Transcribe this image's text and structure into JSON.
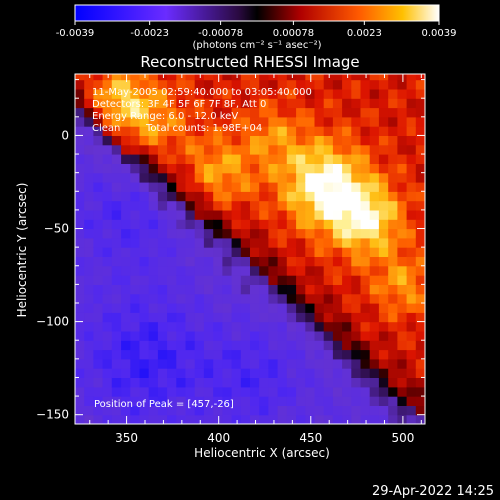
{
  "colorbar": {
    "tick_labels": [
      "-0.0039",
      "-0.0023",
      "-0.00078",
      "0.00078",
      "0.0023",
      "0.0039"
    ],
    "min": -0.0039,
    "max": 0.0039,
    "unit_label": "(photons cm⁻² s⁻¹ asec⁻²)"
  },
  "chart_data": {
    "type": "heatmap",
    "title": "Reconstructed RHESSI Image",
    "xlabel": "Heliocentric X (arcsec)",
    "ylabel": "Heliocentric Y (arcsec)",
    "xlim": [
      322,
      512
    ],
    "ylim": [
      -155,
      33
    ],
    "x_ticks": [
      350,
      400,
      450,
      500
    ],
    "y_ticks": [
      0,
      -50,
      -100,
      -150
    ],
    "x_tick_labels": [
      "350",
      "400",
      "450",
      "500"
    ],
    "y_tick_labels": [
      "0",
      "−50",
      "−100",
      "−150"
    ],
    "peak_position": [
      457,
      -26
    ],
    "annotations": {
      "time_range": "11-May-2005 02:59:40.000 to 03:05:40.000",
      "detectors": "Detectors: 3F 4F 5F 6F 7F 8F, Att 0",
      "energy": "Energy Range: 6.0 - 12.0 keV",
      "method": "Clean",
      "total_counts": "Total counts: 1.98E+04",
      "peak": "Position of Peak = [457,-26]"
    }
  },
  "footer": {
    "timestamp": "29-Apr-2022 14:25"
  }
}
